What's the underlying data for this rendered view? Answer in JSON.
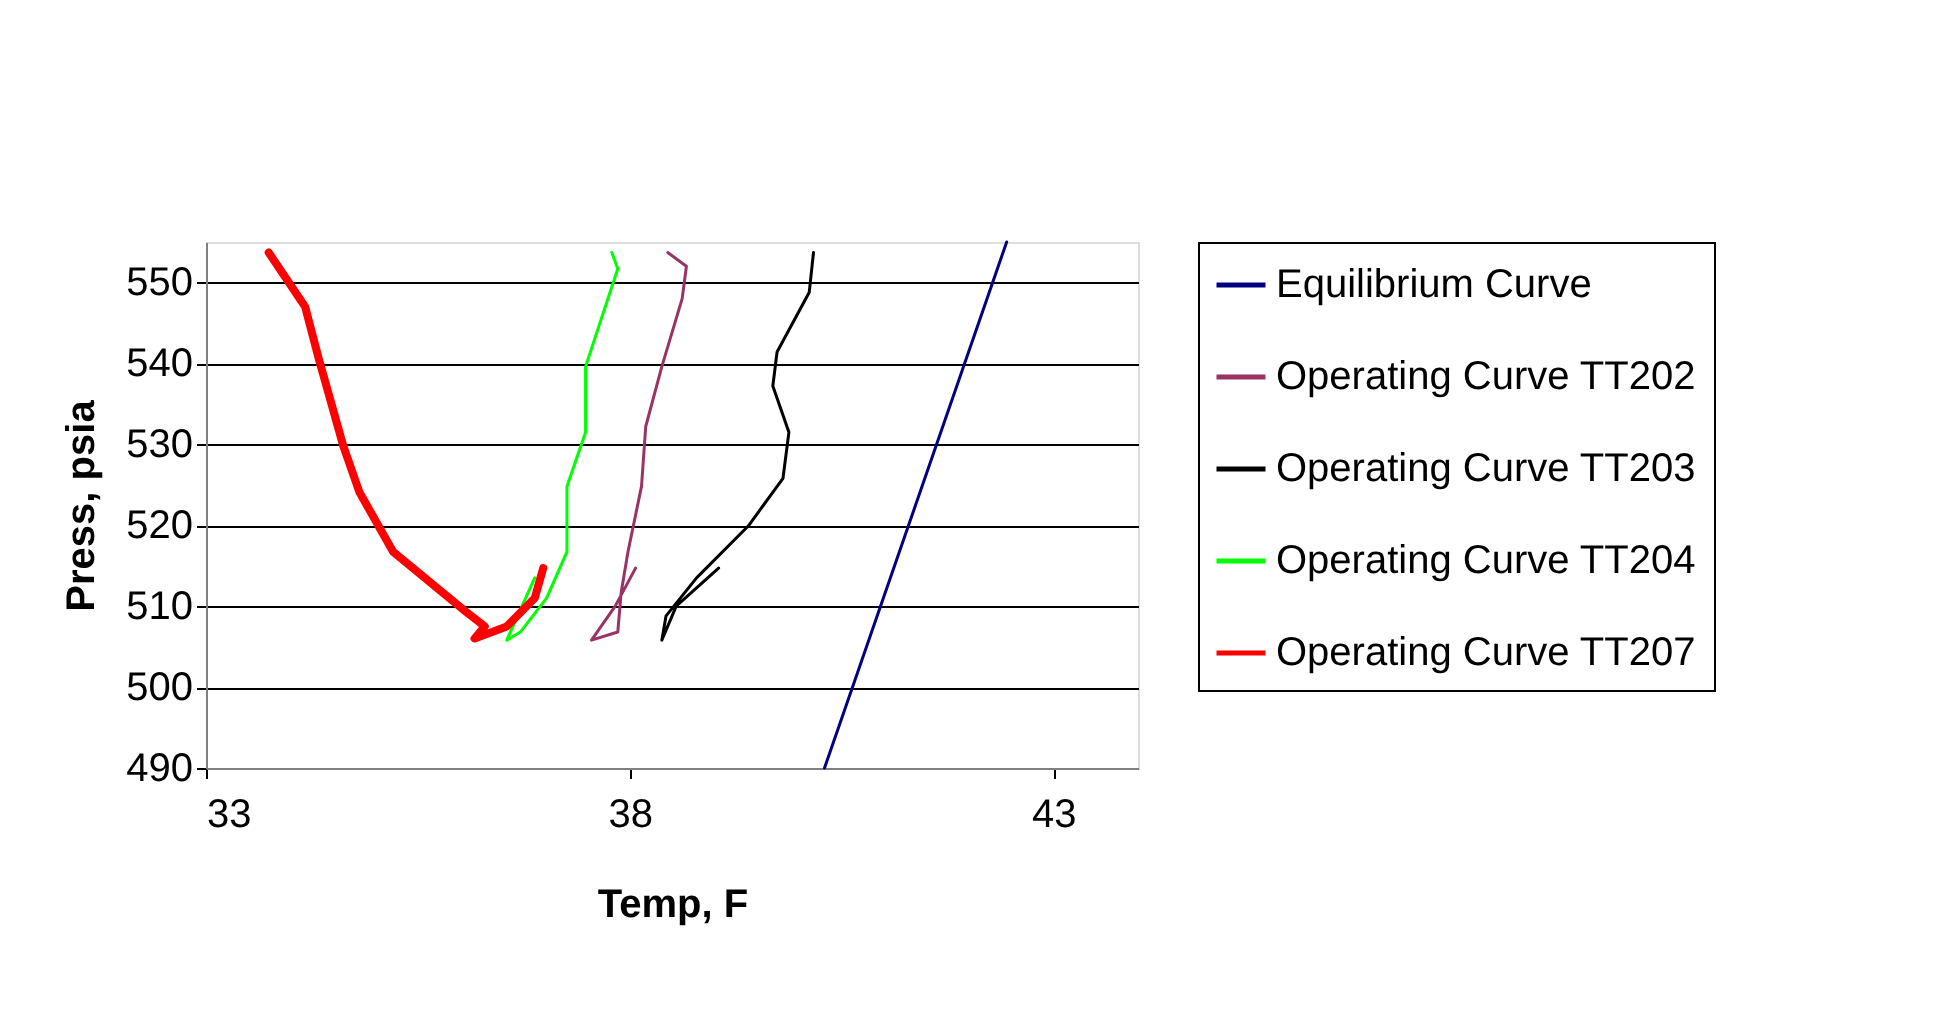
{
  "chart_data": {
    "type": "line",
    "xlabel": "Temp, F",
    "ylabel": "Press, psia",
    "xlim": [
      33,
      44
    ],
    "xticks": [
      33,
      38,
      43
    ],
    "ylim": [
      490,
      555
    ],
    "yticks": [
      490,
      500,
      510,
      520,
      530,
      540,
      550
    ],
    "grid": "y",
    "legend": "right",
    "marker": "none",
    "line_style": "solid",
    "series": [
      {
        "name": "Equilibrium Curve",
        "color": "#000080",
        "x": [
          40.3,
          42.45
        ],
        "values": [
          490,
          555
        ]
      },
      {
        "name": "Operating Curve TT202",
        "color": "#993366",
        "x": [
          38.45,
          38.67,
          38.62,
          38.38,
          38.19,
          38.14,
          37.98,
          37.9,
          37.86,
          37.55,
          37.83,
          38.07
        ],
        "values": [
          553.7,
          552.0,
          548.0,
          539.6,
          532.2,
          524.8,
          516.7,
          511.7,
          506.8,
          505.8,
          510.0,
          514.7
        ]
      },
      {
        "name": "Operating Curve TT203",
        "color": "#000000",
        "x": [
          40.17,
          40.12,
          39.74,
          39.69,
          39.88,
          39.81,
          39.4,
          38.79,
          38.43,
          38.38,
          38.55,
          39.05
        ],
        "values": [
          553.7,
          548.8,
          541.4,
          537.2,
          531.5,
          525.8,
          519.9,
          513.5,
          508.8,
          505.8,
          510.0,
          514.7
        ]
      },
      {
        "name": "Operating Curve TT204",
        "color": "#00ff00",
        "x": [
          37.79,
          37.86,
          37.48,
          37.48,
          37.26,
          37.26,
          37.02,
          36.71,
          36.55,
          36.88
        ],
        "values": [
          553.7,
          551.7,
          539.6,
          531.5,
          524.8,
          516.7,
          511.0,
          506.8,
          505.8,
          513.5
        ]
      },
      {
        "name": "Operating Curve TT207",
        "color": "#ff0000",
        "x": [
          33.74,
          34.17,
          34.33,
          34.62,
          34.81,
          35.21,
          36.07,
          36.29,
          36.17,
          36.55,
          36.88,
          36.98
        ],
        "values": [
          553.7,
          547.0,
          540.6,
          529.8,
          524.1,
          516.7,
          509.3,
          507.5,
          506.0,
          507.5,
          511.0,
          514.7
        ]
      }
    ]
  }
}
